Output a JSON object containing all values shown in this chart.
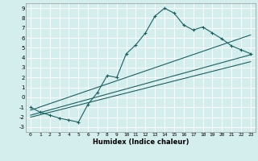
{
  "xlabel": "Humidex (Indice chaleur)",
  "xlim": [
    -0.5,
    23.5
  ],
  "ylim": [
    -3.5,
    9.5
  ],
  "xticks": [
    0,
    1,
    2,
    3,
    4,
    5,
    6,
    7,
    8,
    9,
    10,
    11,
    12,
    13,
    14,
    15,
    16,
    17,
    18,
    19,
    20,
    21,
    22,
    23
  ],
  "yticks": [
    -3,
    -2,
    -1,
    0,
    1,
    2,
    3,
    4,
    5,
    6,
    7,
    8,
    9
  ],
  "bg_color": "#d4eeee",
  "grid_color": "#aad4d4",
  "line_color": "#1a6060",
  "curve1_x": [
    0,
    1,
    2,
    3,
    4,
    5,
    6,
    7,
    8,
    9,
    10,
    11,
    12,
    13,
    14,
    15,
    16,
    17,
    18,
    19,
    20,
    21,
    22,
    23
  ],
  "curve1_y": [
    -1.0,
    -1.5,
    -1.8,
    -2.1,
    -2.3,
    -2.5,
    -0.7,
    0.5,
    2.2,
    2.0,
    4.4,
    5.3,
    6.5,
    8.2,
    9.0,
    8.5,
    7.3,
    6.8,
    7.1,
    6.5,
    5.9,
    5.2,
    4.8,
    4.4
  ],
  "line1_x": [
    0,
    23
  ],
  "line1_y": [
    -1.3,
    6.3
  ],
  "line2_x": [
    0,
    23
  ],
  "line2_y": [
    -1.8,
    4.3
  ],
  "line3_x": [
    0,
    23
  ],
  "line3_y": [
    -2.0,
    3.6
  ]
}
